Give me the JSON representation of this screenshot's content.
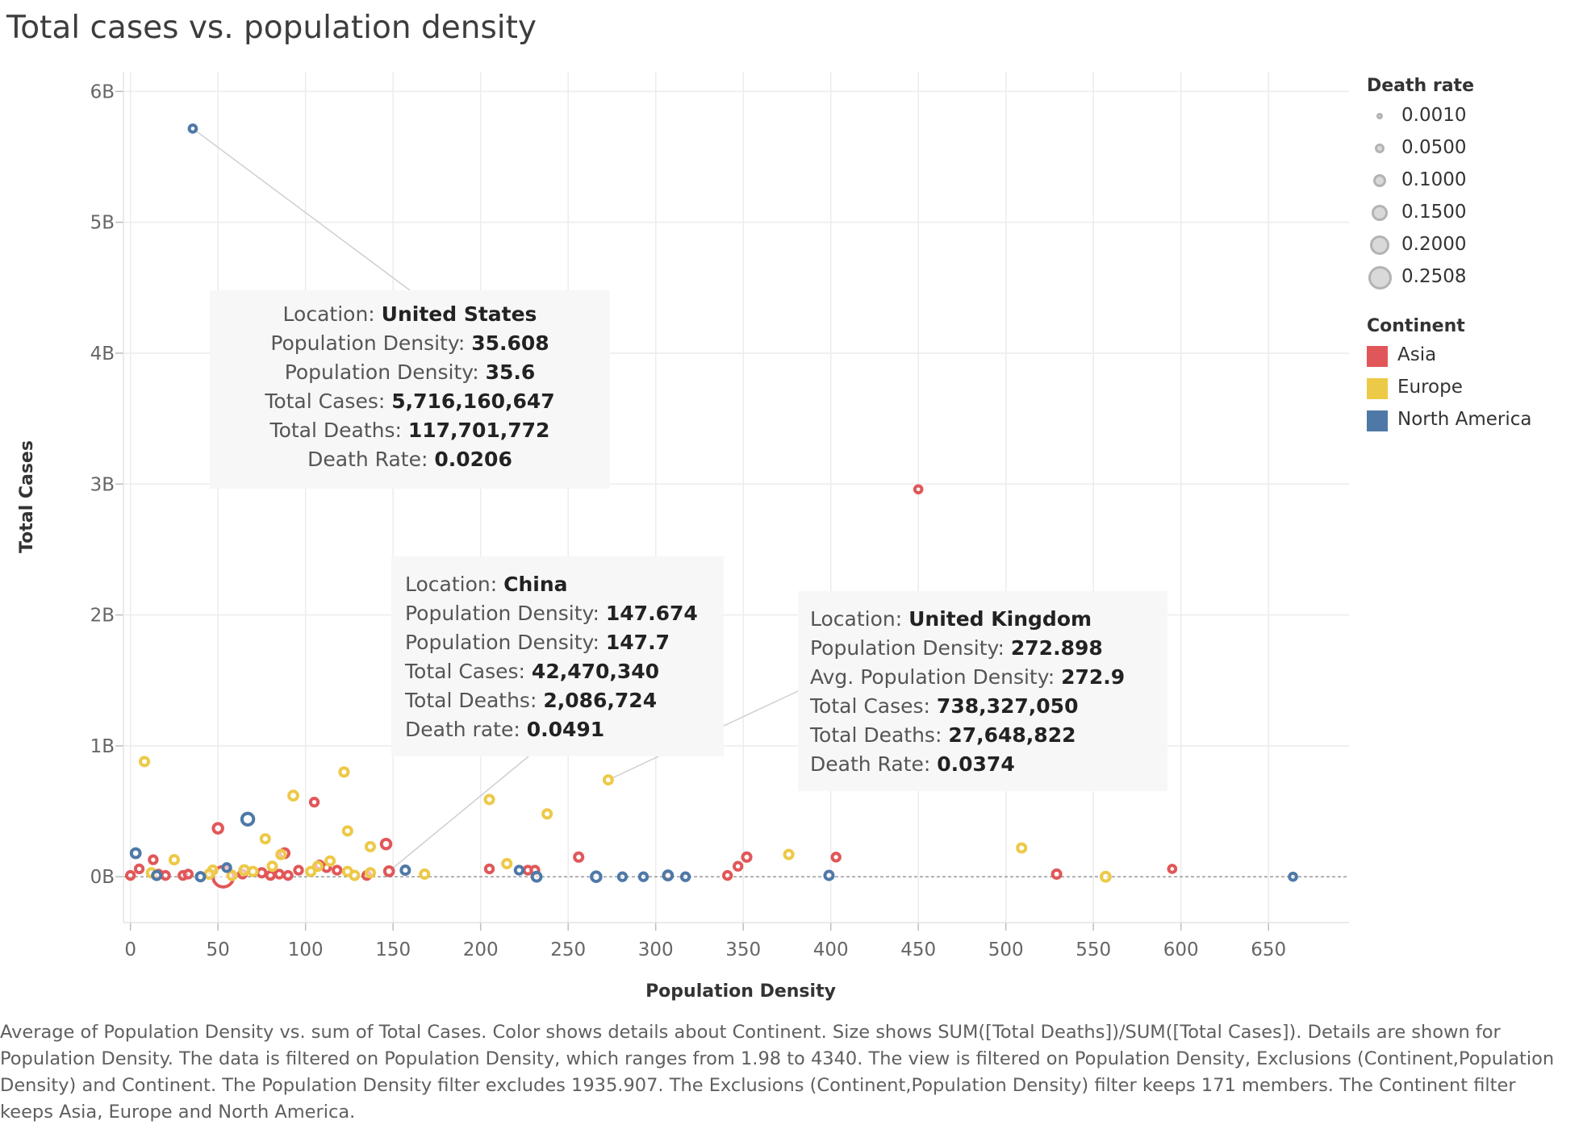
{
  "page": {
    "title": "Total cases vs. population density",
    "caption": "Average of Population Density vs. sum of Total Cases.  Color shows details about Continent.  Size shows SUM([Total Deaths])/SUM([Total Cases]). Details are shown for Population Density. The data is filtered on Population Density, which ranges from 1.98 to 4340. The view is filtered on Population Density, Exclusions (Continent,Population Density) and Continent. The Population Density filter excludes 1935.907. The Exclusions (Continent,Population Density) filter keeps 171 members. The Continent filter keeps Asia, Europe and North America."
  },
  "legend": {
    "size_title": "Death rate",
    "size_items": [
      "0.0010",
      "0.0500",
      "0.1000",
      "0.1500",
      "0.2000",
      "0.2508"
    ],
    "color_title": "Continent",
    "color_items": [
      {
        "label": "Asia",
        "color": "#e15759"
      },
      {
        "label": "Europe",
        "color": "#edc948"
      },
      {
        "label": "North America",
        "color": "#4e79a7"
      }
    ]
  },
  "tooltips": {
    "us": {
      "rows": [
        {
          "k": "Location: ",
          "v": "United States"
        },
        {
          "k": "Population Density: ",
          "v": "35.608"
        },
        {
          "k": "Population Density: ",
          "v": "35.6"
        },
        {
          "k": "Total Cases: ",
          "v": "5,716,160,647"
        },
        {
          "k": "Total Deaths: ",
          "v": "117,701,772"
        },
        {
          "k": "Death Rate: ",
          "v": "0.0206"
        }
      ]
    },
    "china": {
      "rows": [
        {
          "k": "Location: ",
          "v": "China"
        },
        {
          "k": "Population Density: ",
          "v": "147.674"
        },
        {
          "k": "Population Density: ",
          "v": "147.7"
        },
        {
          "k": "Total Cases: ",
          "v": "42,470,340"
        },
        {
          "k": "Total Deaths: ",
          "v": "2,086,724"
        },
        {
          "k": "Death rate: ",
          "v": "0.0491"
        }
      ]
    },
    "uk": {
      "rows": [
        {
          "k": "Location: ",
          "v": "United Kingdom"
        },
        {
          "k": "Population Density: ",
          "v": "272.898"
        },
        {
          "k": "Avg. Population Density: ",
          "v": "272.9"
        },
        {
          "k": "Total Cases: ",
          "v": "738,327,050"
        },
        {
          "k": "Total Deaths: ",
          "v": "27,648,822"
        },
        {
          "k": "Death Rate: ",
          "v": "0.0374"
        }
      ]
    }
  },
  "chart_data": {
    "type": "scatter",
    "title": "Total cases vs. population density",
    "xlabel": "Population Density",
    "ylabel": "Total Cases",
    "xlim": [
      -4,
      696
    ],
    "ylim": [
      -0.35,
      6.15
    ],
    "x_ticks": [
      0,
      50,
      100,
      150,
      200,
      250,
      300,
      350,
      400,
      450,
      500,
      550,
      600,
      650
    ],
    "y_ticks": [
      0,
      1,
      2,
      3,
      4,
      5,
      6
    ],
    "y_tick_labels": [
      "0B",
      "1B",
      "2B",
      "3B",
      "4B",
      "5B",
      "6B"
    ],
    "y_unit": "billions",
    "grid": true,
    "legend_position": "right",
    "series": [
      {
        "name": "Asia",
        "color": "#e15759",
        "points": [
          {
            "x": 450,
            "y": 2.96,
            "r": 0.02
          },
          {
            "x": 147.7,
            "y": 0.042,
            "r": 0.0491
          },
          {
            "x": 53,
            "y": 0.0,
            "r": 0.2508
          },
          {
            "x": 50,
            "y": 0.37,
            "r": 0.06
          },
          {
            "x": 105,
            "y": 0.57,
            "r": 0.03
          },
          {
            "x": 146,
            "y": 0.25,
            "r": 0.06
          },
          {
            "x": 13,
            "y": 0.13,
            "r": 0.03
          },
          {
            "x": 5,
            "y": 0.06,
            "r": 0.03
          },
          {
            "x": 0,
            "y": 0.01,
            "r": 0.03
          },
          {
            "x": 16,
            "y": 0.02,
            "r": 0.03
          },
          {
            "x": 20,
            "y": 0.01,
            "r": 0.03
          },
          {
            "x": 30,
            "y": 0.01,
            "r": 0.03
          },
          {
            "x": 33,
            "y": 0.02,
            "r": 0.03
          },
          {
            "x": 75,
            "y": 0.03,
            "r": 0.04
          },
          {
            "x": 80,
            "y": 0.01,
            "r": 0.03
          },
          {
            "x": 85,
            "y": 0.02,
            "r": 0.03
          },
          {
            "x": 88,
            "y": 0.18,
            "r": 0.05
          },
          {
            "x": 90,
            "y": 0.01,
            "r": 0.03
          },
          {
            "x": 96,
            "y": 0.05,
            "r": 0.03
          },
          {
            "x": 108,
            "y": 0.09,
            "r": 0.03
          },
          {
            "x": 112,
            "y": 0.07,
            "r": 0.03
          },
          {
            "x": 118,
            "y": 0.05,
            "r": 0.03
          },
          {
            "x": 135,
            "y": 0.01,
            "r": 0.03
          },
          {
            "x": 64,
            "y": 0.02,
            "r": 0.03
          },
          {
            "x": 205,
            "y": 0.06,
            "r": 0.03
          },
          {
            "x": 227,
            "y": 0.05,
            "r": 0.03
          },
          {
            "x": 231,
            "y": 0.05,
            "r": 0.03
          },
          {
            "x": 256,
            "y": 0.15,
            "r": 0.04
          },
          {
            "x": 307,
            "y": 0.01,
            "r": 0.03
          },
          {
            "x": 341,
            "y": 0.01,
            "r": 0.03
          },
          {
            "x": 347,
            "y": 0.08,
            "r": 0.03
          },
          {
            "x": 352,
            "y": 0.15,
            "r": 0.04
          },
          {
            "x": 403,
            "y": 0.15,
            "r": 0.03
          },
          {
            "x": 529,
            "y": 0.02,
            "r": 0.04
          },
          {
            "x": 595,
            "y": 0.06,
            "r": 0.02
          }
        ]
      },
      {
        "name": "Europe",
        "color": "#edc948",
        "points": [
          {
            "x": 272.9,
            "y": 0.74,
            "r": 0.0374
          },
          {
            "x": 8,
            "y": 0.88,
            "r": 0.04
          },
          {
            "x": 122,
            "y": 0.8,
            "r": 0.04
          },
          {
            "x": 93,
            "y": 0.62,
            "r": 0.05
          },
          {
            "x": 205,
            "y": 0.59,
            "r": 0.04
          },
          {
            "x": 238,
            "y": 0.48,
            "r": 0.04
          },
          {
            "x": 124,
            "y": 0.35,
            "r": 0.04
          },
          {
            "x": 77,
            "y": 0.29,
            "r": 0.04
          },
          {
            "x": 137,
            "y": 0.23,
            "r": 0.04
          },
          {
            "x": 86,
            "y": 0.17,
            "r": 0.04
          },
          {
            "x": 376,
            "y": 0.17,
            "r": 0.04
          },
          {
            "x": 509,
            "y": 0.22,
            "r": 0.04
          },
          {
            "x": 25,
            "y": 0.13,
            "r": 0.04
          },
          {
            "x": 114,
            "y": 0.12,
            "r": 0.04
          },
          {
            "x": 215,
            "y": 0.1,
            "r": 0.04
          },
          {
            "x": 81,
            "y": 0.08,
            "r": 0.04
          },
          {
            "x": 47,
            "y": 0.05,
            "r": 0.04
          },
          {
            "x": 65,
            "y": 0.05,
            "r": 0.05
          },
          {
            "x": 70,
            "y": 0.04,
            "r": 0.04
          },
          {
            "x": 103,
            "y": 0.04,
            "r": 0.04
          },
          {
            "x": 107,
            "y": 0.08,
            "r": 0.04
          },
          {
            "x": 124,
            "y": 0.04,
            "r": 0.04
          },
          {
            "x": 12,
            "y": 0.03,
            "r": 0.04
          },
          {
            "x": 45,
            "y": 0.02,
            "r": 0.04
          },
          {
            "x": 58,
            "y": 0.01,
            "r": 0.04
          },
          {
            "x": 128,
            "y": 0.01,
            "r": 0.04
          },
          {
            "x": 137,
            "y": 0.03,
            "r": 0.04
          },
          {
            "x": 168,
            "y": 0.02,
            "r": 0.04
          },
          {
            "x": 557,
            "y": 0.0,
            "r": 0.05
          }
        ]
      },
      {
        "name": "North America",
        "color": "#4e79a7",
        "points": [
          {
            "x": 35.6,
            "y": 5.716,
            "r": 0.0206
          },
          {
            "x": 67,
            "y": 0.44,
            "r": 0.1
          },
          {
            "x": 3,
            "y": 0.18,
            "r": 0.05
          },
          {
            "x": 55,
            "y": 0.07,
            "r": 0.03
          },
          {
            "x": 157,
            "y": 0.05,
            "r": 0.04
          },
          {
            "x": 222,
            "y": 0.05,
            "r": 0.03
          },
          {
            "x": 15,
            "y": 0.01,
            "r": 0.04
          },
          {
            "x": 40,
            "y": 0.0,
            "r": 0.04
          },
          {
            "x": 232,
            "y": 0.0,
            "r": 0.05
          },
          {
            "x": 266,
            "y": 0.0,
            "r": 0.06
          },
          {
            "x": 281,
            "y": 0.0,
            "r": 0.03
          },
          {
            "x": 293,
            "y": 0.0,
            "r": 0.03
          },
          {
            "x": 307,
            "y": 0.01,
            "r": 0.05
          },
          {
            "x": 317,
            "y": 0.0,
            "r": 0.03
          },
          {
            "x": 399,
            "y": 0.01,
            "r": 0.04
          },
          {
            "x": 664,
            "y": 0.0,
            "r": 0.02
          }
        ]
      }
    ],
    "annotations": [
      {
        "key": "us",
        "series": "North America",
        "x": 35.6,
        "y": 5.716
      },
      {
        "key": "china",
        "series": "Asia",
        "x": 147.7,
        "y": 0.042
      },
      {
        "key": "uk",
        "series": "Europe",
        "x": 272.9,
        "y": 0.74
      }
    ]
  }
}
